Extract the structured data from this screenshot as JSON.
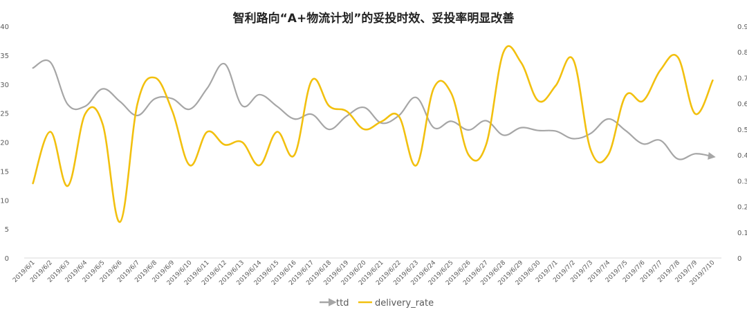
{
  "chart_data": {
    "type": "line",
    "title": "智利路向“A+物流计划”的妥投时效、妥投率明显改善",
    "categories": [
      "2019/6/1",
      "2019/6/2",
      "2019/6/3",
      "2019/6/4",
      "2019/6/5",
      "2019/6/6",
      "2019/6/7",
      "2019/6/8",
      "2019/6/9",
      "2019/6/10",
      "2019/6/11",
      "2019/6/12",
      "2019/6/13",
      "2019/6/14",
      "2019/6/15",
      "2019/6/16",
      "2019/6/17",
      "2019/6/18",
      "2019/6/19",
      "2019/6/20",
      "2019/6/21",
      "2019/6/22",
      "2019/6/23",
      "2019/6/24",
      "2019/6/25",
      "2019/6/26",
      "2019/6/27",
      "2019/6/28",
      "2019/6/29",
      "2019/6/30",
      "2019/7/1",
      "2019/7/2",
      "2019/7/3",
      "2019/7/4",
      "2019/7/5",
      "2019/7/6",
      "2019/7/7",
      "2019/7/8",
      "2019/7/9",
      "2019/7/10"
    ],
    "left_axis": {
      "min": 0,
      "max": 40,
      "step": 5,
      "ticks": [
        "0",
        "5",
        "10",
        "15",
        "20",
        "25",
        "30",
        "35",
        "40"
      ]
    },
    "right_axis": {
      "min": 0,
      "max": 0.9,
      "step": 0.1,
      "ticks": [
        "0",
        "0.1",
        "0.2",
        "0.3",
        "0.4",
        "0.5",
        "0.6",
        "0.7",
        "0.8",
        "0.9"
      ]
    },
    "grid": false,
    "legend_position": "bottom",
    "series": [
      {
        "name": "ttd",
        "axis": "left",
        "color": "#a6a6a6",
        "values": [
          32.8,
          33.8,
          26.5,
          26.2,
          29.2,
          27.0,
          24.6,
          27.5,
          27.5,
          25.7,
          29.3,
          33.5,
          26.3,
          28.2,
          26.2,
          24.0,
          24.8,
          22.2,
          24.5,
          26.0,
          23.3,
          24.6,
          27.7,
          22.5,
          23.6,
          22.1,
          23.7,
          21.2,
          22.5,
          22.0,
          21.9,
          20.6,
          21.5,
          24.0,
          22.0,
          19.7,
          20.3,
          17.1,
          18.0,
          17.5
        ]
      },
      {
        "name": "delivery_rate",
        "axis": "right",
        "color": "#f2c00f",
        "values": [
          0.29,
          0.49,
          0.28,
          0.56,
          0.52,
          0.14,
          0.6,
          0.7,
          0.57,
          0.36,
          0.49,
          0.44,
          0.45,
          0.36,
          0.49,
          0.4,
          0.69,
          0.59,
          0.57,
          0.5,
          0.53,
          0.55,
          0.36,
          0.66,
          0.64,
          0.4,
          0.44,
          0.8,
          0.76,
          0.61,
          0.67,
          0.77,
          0.42,
          0.4,
          0.63,
          0.61,
          0.73,
          0.78,
          0.56,
          0.69
        ]
      }
    ]
  }
}
